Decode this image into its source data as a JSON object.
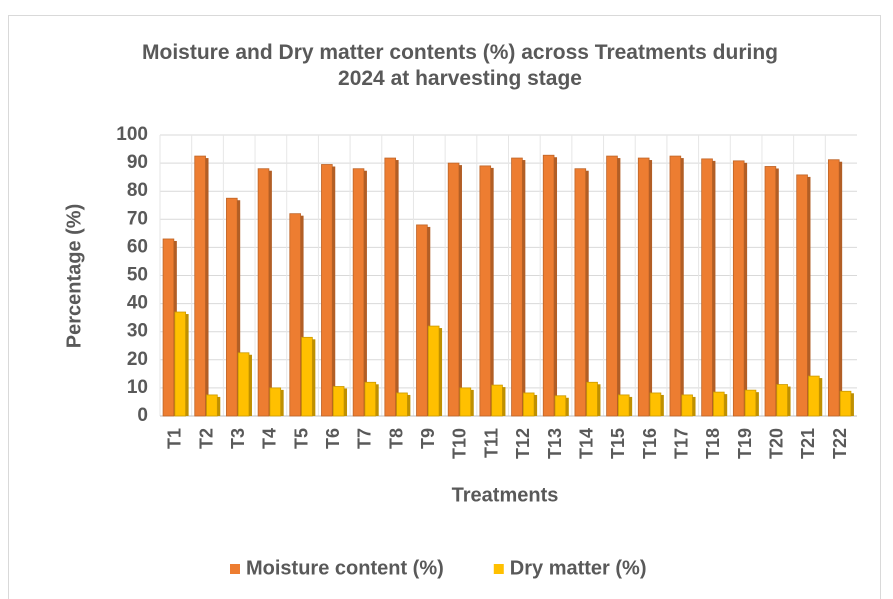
{
  "chart_data": {
    "type": "bar",
    "title": "Moisture and Dry matter contents (%) across Treatments during 2024 at harvesting stage",
    "x_label": "Treatments",
    "y_label": "Percentage (%)",
    "categories": [
      "T1",
      "T2",
      "T3",
      "T4",
      "T5",
      "T6",
      "T7",
      "T8",
      "T9",
      "T10",
      "T11",
      "T12",
      "T13",
      "T14",
      "T15",
      "T16",
      "T17",
      "T18",
      "T19",
      "T20",
      "T21",
      "T22"
    ],
    "series": [
      {
        "name": "Moisture content (%)",
        "color": "#ED7D31",
        "values": [
          63,
          92.5,
          77.5,
          88,
          72,
          89.5,
          88,
          91.8,
          68,
          90,
          89,
          91.8,
          92.8,
          88,
          92.5,
          91.8,
          92.5,
          91.5,
          90.8,
          88.8,
          85.8,
          91.2
        ]
      },
      {
        "name": "Dry matter (%)",
        "color": "#FFC000",
        "values": [
          37,
          7.5,
          22.5,
          10,
          28,
          10.5,
          12,
          8.2,
          32,
          10,
          11,
          8.2,
          7.2,
          12,
          7.5,
          8.2,
          7.5,
          8.5,
          9.2,
          11.2,
          14.2,
          8.8
        ]
      }
    ],
    "ylim": [
      0,
      100
    ],
    "yticks": [
      0,
      10,
      20,
      30,
      40,
      50,
      60,
      70,
      80,
      90,
      100
    ],
    "grid": true,
    "legend": "bottom"
  }
}
